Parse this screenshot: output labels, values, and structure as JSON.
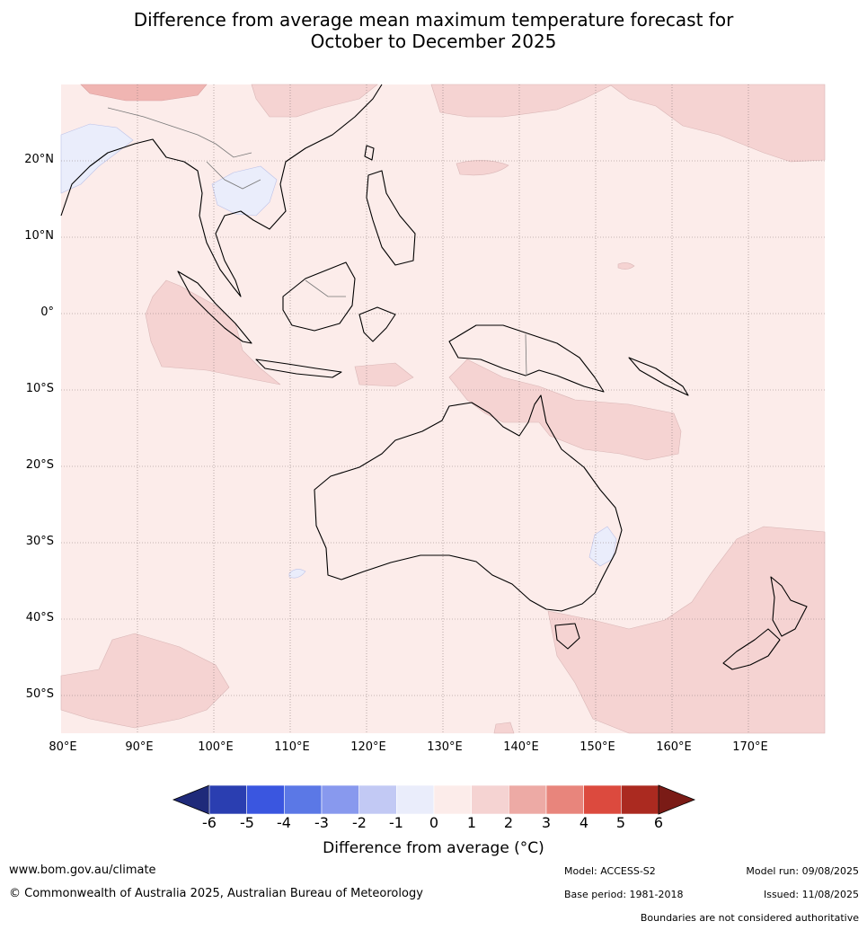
{
  "title_line1": "Difference from average mean maximum temperature forecast for",
  "title_line2": "October to December 2025",
  "lat_labels": [
    "20°N",
    "10°N",
    "0°",
    "10°S",
    "20°S",
    "30°S",
    "40°S",
    "50°S"
  ],
  "lon_labels": [
    "80°E",
    "90°E",
    "100°E",
    "110°E",
    "120°E",
    "130°E",
    "140°E",
    "150°E",
    "160°E",
    "170°E"
  ],
  "colorbar": {
    "ticks": [
      "-6",
      "-5",
      "-4",
      "-3",
      "-2",
      "-1",
      "0",
      "1",
      "2",
      "3",
      "4",
      "5",
      "6"
    ],
    "colors": [
      "#1f2a7a",
      "#2a3eb1",
      "#3a56e0",
      "#5b78e6",
      "#8899ee",
      "#c2c9f4",
      "#eaedfb",
      "#fcecea",
      "#f5d3d2",
      "#edaaa5",
      "#e8857c",
      "#dc4a3e",
      "#ab2a20",
      "#7a1b16"
    ],
    "label": "Difference from average (°C)"
  },
  "map_colors": {
    "base": "#fcecea",
    "warm": "#f5d3d2",
    "cool": "#eaedfb",
    "warmer": "#f0b5b2"
  },
  "footer": {
    "website": "www.bom.gov.au/climate",
    "copyright": "© Commonwealth of Australia 2025, Australian Bureau of Meteorology",
    "model": "Model: ACCESS-S2",
    "base_period": "Base period: 1981-2018",
    "model_run": "Model run: 09/08/2025",
    "issued": "Issued: 11/08/2025",
    "disclaimer": "Boundaries are not considered authoritative"
  }
}
